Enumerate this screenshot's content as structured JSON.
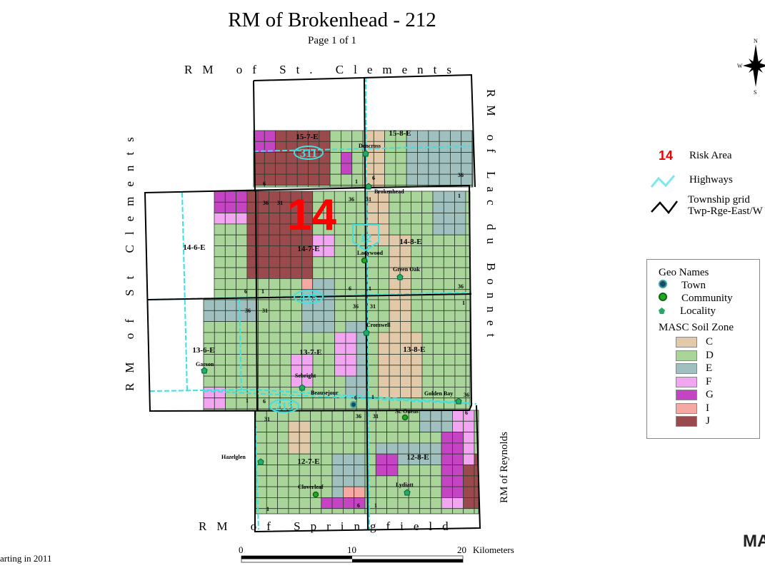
{
  "title": "RM of Brokenhead - 212",
  "subtitle": "Page 1 of 1",
  "borders": {
    "north": "RM of St. Clements",
    "west": "RM of St Clements",
    "east": "RM of Lac du Bonnet",
    "east_south": "RM of Reynolds",
    "south": "RM of Springfield"
  },
  "risk_area": "14",
  "townships": [
    "15-7-E",
    "15-8-E",
    "14-6-E",
    "14-7-E",
    "14-8-E",
    "13-6-E",
    "13-7-E",
    "13-8-E",
    "12-7-E",
    "12-8-E"
  ],
  "highways": [
    "311",
    "12",
    "435",
    "215"
  ],
  "places": [
    {
      "name": "Dencross",
      "type": "locality"
    },
    {
      "name": "Brokenhead",
      "type": "locality"
    },
    {
      "name": "Ladywood",
      "type": "community"
    },
    {
      "name": "Green Oak",
      "type": "locality"
    },
    {
      "name": "Cromwell",
      "type": "locality"
    },
    {
      "name": "Garson",
      "type": "locality"
    },
    {
      "name": "Sebright",
      "type": "locality"
    },
    {
      "name": "Beausejour",
      "type": "town"
    },
    {
      "name": "Golden Bay",
      "type": "locality"
    },
    {
      "name": "St. Ouens",
      "type": "community"
    },
    {
      "name": "Hazelglen",
      "type": "locality"
    },
    {
      "name": "Cloverleaf",
      "type": "community"
    },
    {
      "name": "Lydiatt",
      "type": "locality"
    }
  ],
  "section_numbers": [
    "6",
    "1",
    "6",
    "36",
    "31",
    "36",
    "31",
    "36",
    "1",
    "6",
    "1",
    "6",
    "1",
    "36",
    "31",
    "36",
    "31",
    "36",
    "1",
    "6",
    "1",
    "6",
    "1",
    "31",
    "36",
    "31",
    "36",
    "6",
    "1",
    "6",
    "1"
  ],
  "compass": {
    "n": "N",
    "s": "S",
    "w": "W"
  },
  "legend": {
    "risk_area_symbol": "14",
    "risk_area_label": "Risk Area",
    "highways_label": "Highways",
    "township_label_1": "Township grid",
    "township_label_2": "Twp-Rge-East/W",
    "geo_names_title": "Geo Names",
    "town": "Town",
    "community": "Community",
    "locality": "Locality",
    "soil_zone_title": "MASC Soil Zone",
    "zones": [
      {
        "code": "C",
        "color": "#e2c9a9"
      },
      {
        "code": "D",
        "color": "#a9d49a"
      },
      {
        "code": "E",
        "color": "#a0bfbf"
      },
      {
        "code": "F",
        "color": "#f2a6f2"
      },
      {
        "code": "G",
        "color": "#c444c4"
      },
      {
        "code": "I",
        "color": "#f5a9a2"
      },
      {
        "code": "J",
        "color": "#9a4a4c"
      }
    ]
  },
  "scale_bar": {
    "ticks": [
      "0",
      "10",
      "20"
    ],
    "unit": "Kilometers"
  },
  "footer_note": "arting in 2011",
  "logo_text": "MA"
}
